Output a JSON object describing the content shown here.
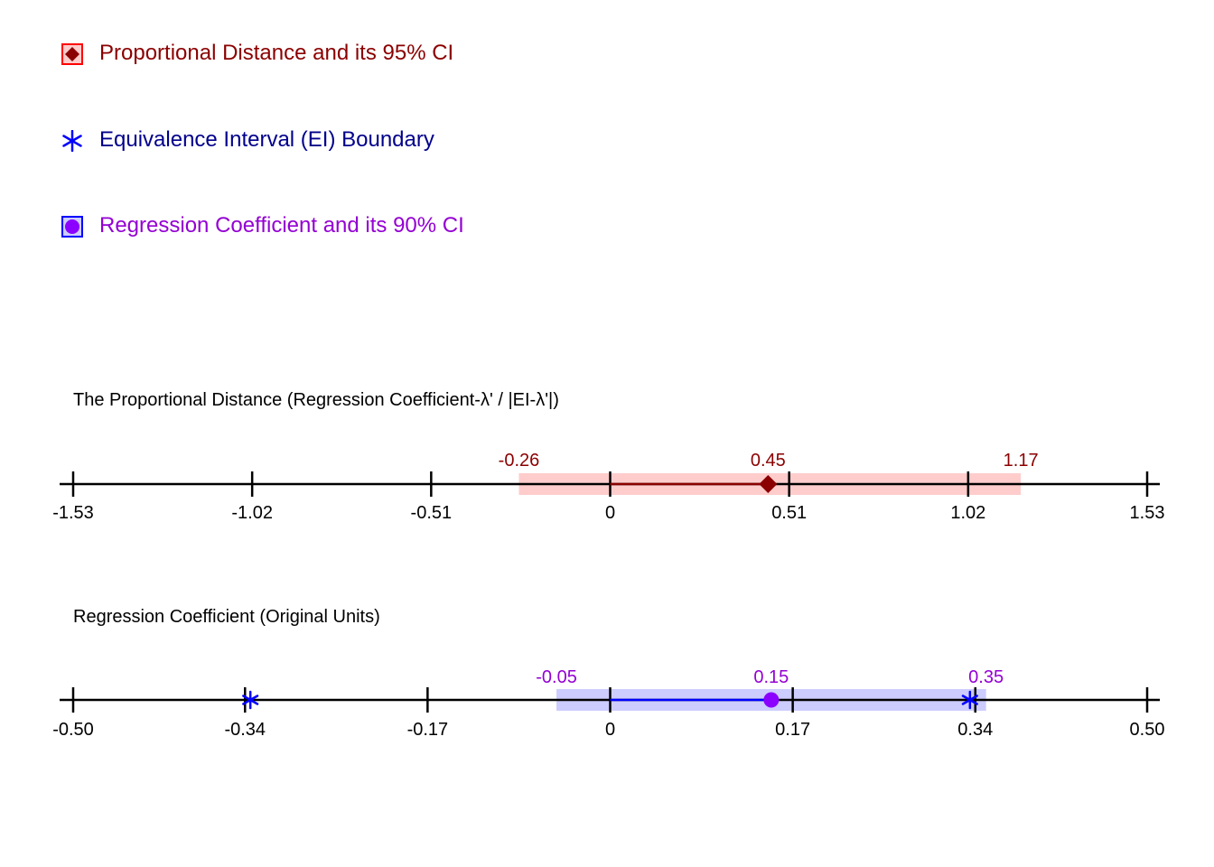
{
  "legend": {
    "items": [
      {
        "label": "Proportional Distance and its 95% CI",
        "color": "#8B0000",
        "icon": "diamond-icon"
      },
      {
        "label": "Equivalence Interval (EI) Boundary",
        "color": "#00008B",
        "icon": "asterisk-icon"
      },
      {
        "label": "Regression Coefficient and its 90% CI",
        "color": "#9400D3",
        "icon": "circle-icon"
      }
    ]
  },
  "chart_data": [
    {
      "type": "interval",
      "title": "The Proportional Distance (Regression Coefficient-λ' / |EI-λ'|)",
      "xlim": [
        -1.53,
        1.53
      ],
      "ticks": [
        -1.53,
        -1.02,
        -0.51,
        0,
        0.51,
        1.02,
        1.53
      ],
      "tick_labels": [
        "-1.53",
        "-1.02",
        "-0.51",
        "0",
        "0.51",
        "1.02",
        "1.53"
      ],
      "estimate": 0.45,
      "ci": [
        -0.26,
        1.17
      ],
      "labels": {
        "lower": "-0.26",
        "estimate": "0.45",
        "upper": "1.17"
      },
      "ci_color": "#FFCCCC",
      "label_color": "#8B0000",
      "marker_color": "#8B0000"
    },
    {
      "type": "interval",
      "title": "Regression Coefficient (Original Units)",
      "xlim": [
        -0.5,
        0.5
      ],
      "ticks": [
        -0.5,
        -0.34,
        -0.17,
        0,
        0.17,
        0.34,
        0.5
      ],
      "tick_labels": [
        "-0.50",
        "-0.34",
        "-0.17",
        "0",
        "0.17",
        "0.34",
        "0.50"
      ],
      "tick_positions": [
        -1.53,
        -1.02,
        -0.51,
        0,
        0.51,
        1.02,
        1.53
      ],
      "estimate": 0.15,
      "ci": [
        -0.05,
        0.35
      ],
      "ei_boundaries": [
        -0.335,
        0.335
      ],
      "labels": {
        "lower": "-0.05",
        "estimate": "0.15",
        "upper": "0.35"
      },
      "ci_color": "#CCCCFF",
      "label_color": "#9400D3",
      "marker_color": "#8B00FF",
      "ei_color": "#0000FF"
    }
  ]
}
